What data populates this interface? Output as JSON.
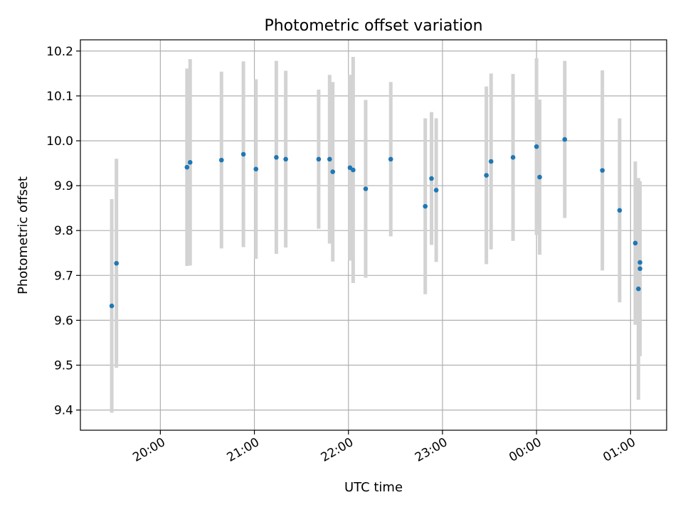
{
  "chart_data": {
    "type": "scatter",
    "title": "Photometric offset variation",
    "xlabel": "UTC time",
    "ylabel": "Photometric offset",
    "x_is_time": true,
    "xlim": [
      "19:09",
      "01:23"
    ],
    "ylim": [
      9.355,
      10.225
    ],
    "x_ticks": [
      "20:00",
      "21:00",
      "22:00",
      "23:00",
      "00:00",
      "01:00"
    ],
    "y_ticks": [
      9.4,
      9.5,
      9.6,
      9.7,
      9.8,
      9.9,
      10.0,
      10.1,
      10.2
    ],
    "grid": true,
    "marker_color": "#1f77b4",
    "errorbar_color": "#d3d3d3",
    "points": [
      {
        "time": "19:29",
        "y": 9.632,
        "err": 0.238
      },
      {
        "time": "19:32",
        "y": 9.727,
        "err": 0.233
      },
      {
        "time": "20:17",
        "y": 9.941,
        "err": 0.22
      },
      {
        "time": "20:19",
        "y": 9.952,
        "err": 0.23
      },
      {
        "time": "20:39",
        "y": 9.957,
        "err": 0.197
      },
      {
        "time": "20:53",
        "y": 9.97,
        "err": 0.207
      },
      {
        "time": "21:01",
        "y": 9.937,
        "err": 0.2
      },
      {
        "time": "21:14",
        "y": 9.963,
        "err": 0.215
      },
      {
        "time": "21:20",
        "y": 9.959,
        "err": 0.197
      },
      {
        "time": "21:41",
        "y": 9.959,
        "err": 0.155
      },
      {
        "time": "21:48",
        "y": 9.959,
        "err": 0.188
      },
      {
        "time": "21:50",
        "y": 9.931,
        "err": 0.2
      },
      {
        "time": "22:01",
        "y": 9.94,
        "err": 0.207
      },
      {
        "time": "22:03",
        "y": 9.935,
        "err": 0.252
      },
      {
        "time": "22:11",
        "y": 9.893,
        "err": 0.198
      },
      {
        "time": "22:27",
        "y": 9.959,
        "err": 0.172
      },
      {
        "time": "22:49",
        "y": 9.854,
        "err": 0.196
      },
      {
        "time": "22:53",
        "y": 9.916,
        "err": 0.148
      },
      {
        "time": "22:56",
        "y": 9.89,
        "err": 0.16
      },
      {
        "time": "23:28",
        "y": 9.923,
        "err": 0.198
      },
      {
        "time": "23:31",
        "y": 9.954,
        "err": 0.196
      },
      {
        "time": "23:45",
        "y": 9.963,
        "err": 0.186
      },
      {
        "time": "00:00",
        "y": 9.987,
        "err": 0.197
      },
      {
        "time": "00:02",
        "y": 9.919,
        "err": 0.173
      },
      {
        "time": "00:18",
        "y": 10.003,
        "err": 0.175
      },
      {
        "time": "00:42",
        "y": 9.934,
        "err": 0.223
      },
      {
        "time": "00:53",
        "y": 9.845,
        "err": 0.205
      },
      {
        "time": "01:03",
        "y": 9.772,
        "err": 0.182
      },
      {
        "time": "01:05",
        "y": 9.67,
        "err": 0.247
      },
      {
        "time": "01:06",
        "y": 9.715,
        "err": 0.195
      },
      {
        "time": "01:06",
        "y": 9.729,
        "err": 0.18
      }
    ]
  }
}
